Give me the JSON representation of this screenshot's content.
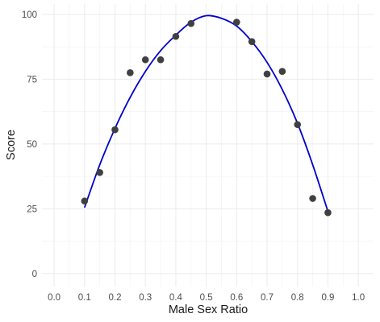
{
  "chart_data": {
    "type": "scatter",
    "xlabel": "Male Sex Ratio",
    "ylabel": "Score",
    "xlim": [
      -0.04,
      1.05
    ],
    "ylim": [
      -5,
      104
    ],
    "x_ticks": [
      0.0,
      0.1,
      0.2,
      0.3,
      0.4,
      0.5,
      0.6,
      0.7,
      0.8,
      0.9,
      1.0
    ],
    "x_tick_labels": [
      "0.0",
      "0.1",
      "0.2",
      "0.3",
      "0.4",
      "0.5",
      "0.6",
      "0.7",
      "0.8",
      "0.9",
      "1.0"
    ],
    "y_ticks": [
      0,
      25,
      50,
      75,
      100
    ],
    "y_tick_labels": [
      "0",
      "25",
      "50",
      "75",
      "100"
    ],
    "grid": true,
    "points": {
      "x": [
        0.1,
        0.15,
        0.2,
        0.25,
        0.3,
        0.35,
        0.4,
        0.45,
        0.6,
        0.65,
        0.7,
        0.75,
        0.8,
        0.85,
        0.9
      ],
      "y": [
        28,
        39,
        55.5,
        77.5,
        82.5,
        82.5,
        91.5,
        96.5,
        97,
        89.5,
        77,
        78,
        57.5,
        29,
        23.5
      ],
      "color": "#404040"
    },
    "fit_line": {
      "x": [
        0.1,
        0.15,
        0.2,
        0.25,
        0.3,
        0.35,
        0.4,
        0.45,
        0.5,
        0.55,
        0.6,
        0.65,
        0.7,
        0.75,
        0.8,
        0.85,
        0.9
      ],
      "y": [
        25.5,
        42,
        56,
        68,
        78,
        86,
        92,
        97,
        99.5,
        98.5,
        95.5,
        89.5,
        81.5,
        71,
        58,
        42,
        24
      ],
      "color": "#0000cc"
    }
  }
}
